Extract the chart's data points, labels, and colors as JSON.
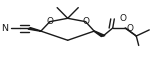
{
  "bg_color": "#ffffff",
  "fig_width": 1.66,
  "fig_height": 0.61,
  "dpi": 100,
  "xlim": [
    0,
    1.0
  ],
  "ylim": [
    0,
    1.0
  ],
  "line_color": "#1a1a1a",
  "lw": 1.0
}
